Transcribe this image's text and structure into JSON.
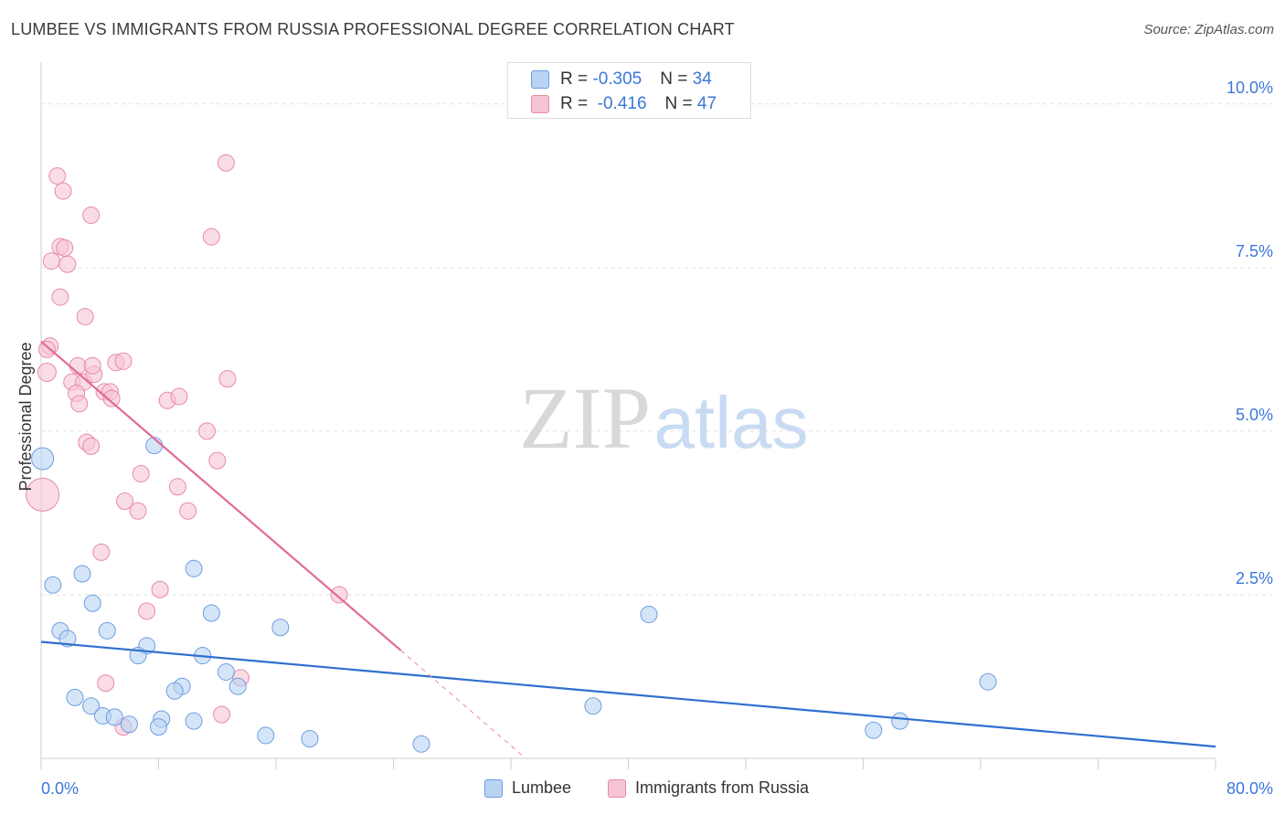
{
  "header": {
    "title": "LUMBEE VS IMMIGRANTS FROM RUSSIA PROFESSIONAL DEGREE CORRELATION CHART",
    "source": "Source: ZipAtlas.com"
  },
  "watermark": {
    "zip": "ZIP",
    "atlas": "atlas"
  },
  "stats_box": {
    "rows": [
      {
        "r_label": "R = ",
        "r_value": "-0.305",
        "n_label": "N = ",
        "n_value": "34"
      },
      {
        "r_label": "R = ",
        "r_value": " -0.416",
        "n_label": "N = ",
        "n_value": "47"
      }
    ]
  },
  "legend": {
    "lumbee": "Lumbee",
    "russia": "Immigrants from Russia"
  },
  "colors": {
    "lumbee_fill": "#b9d3f3",
    "lumbee_stroke": "#6d9de0",
    "lumbee_line": "#2f6fcf",
    "russia_fill": "#f7c4d4",
    "russia_stroke": "#e88aa7",
    "russia_line": "#e26a93",
    "tick_label": "#3b78d8",
    "grid": "#e2e2e2"
  },
  "chart_data": {
    "type": "scatter",
    "title": "LUMBEE VS IMMIGRANTS FROM RUSSIA PROFESSIONAL DEGREE CORRELATION CHART",
    "xlabel": "",
    "ylabel": "Professional Degree",
    "xlim": [
      0,
      80
    ],
    "ylim": [
      0,
      10.5
    ],
    "x_tick_labels": [
      "0.0%",
      "80.0%"
    ],
    "y_ticks": [
      2.5,
      5.0,
      7.5,
      10.0
    ],
    "y_tick_labels": [
      "2.5%",
      "5.0%",
      "7.5%",
      "10.0%"
    ],
    "grid": true,
    "legend_position": "bottom-center",
    "series": [
      {
        "name": "Lumbee",
        "r": -0.305,
        "n": 34,
        "trend": {
          "x": [
            0,
            80
          ],
          "y": [
            1.78,
            0.18
          ]
        },
        "points": [
          [
            0.1,
            4.58,
            12
          ],
          [
            0.8,
            2.65,
            9
          ],
          [
            2.8,
            2.82,
            9
          ],
          [
            3.5,
            2.37,
            9
          ],
          [
            1.3,
            1.95,
            9
          ],
          [
            1.8,
            1.83,
            9
          ],
          [
            4.5,
            1.95,
            9
          ],
          [
            7.7,
            4.78,
            9
          ],
          [
            10.4,
            2.9,
            9
          ],
          [
            11.6,
            2.22,
            9
          ],
          [
            16.3,
            2.0,
            9
          ],
          [
            7.2,
            1.72,
            9
          ],
          [
            6.6,
            1.57,
            9
          ],
          [
            11.0,
            1.57,
            9
          ],
          [
            12.6,
            1.32,
            9
          ],
          [
            9.6,
            1.1,
            9
          ],
          [
            9.1,
            1.03,
            9
          ],
          [
            13.4,
            1.1,
            9
          ],
          [
            2.3,
            0.93,
            9
          ],
          [
            3.4,
            0.8,
            9
          ],
          [
            4.2,
            0.65,
            9
          ],
          [
            5.0,
            0.63,
            9
          ],
          [
            6.0,
            0.52,
            9
          ],
          [
            8.2,
            0.6,
            9
          ],
          [
            10.4,
            0.57,
            9
          ],
          [
            8.0,
            0.48,
            9
          ],
          [
            15.3,
            0.35,
            9
          ],
          [
            18.3,
            0.3,
            9
          ],
          [
            25.9,
            0.22,
            9
          ],
          [
            37.6,
            0.8,
            9
          ],
          [
            41.4,
            2.2,
            9
          ],
          [
            56.7,
            0.43,
            9
          ],
          [
            58.5,
            0.57,
            9
          ],
          [
            64.5,
            1.17,
            9
          ]
        ]
      },
      {
        "name": "Immigrants from Russia",
        "r": -0.416,
        "n": 47,
        "trend": {
          "x": [
            0,
            24.5
          ],
          "y": [
            6.37,
            1.65
          ]
        },
        "trend_dashed": {
          "x": [
            24.5,
            33
          ],
          "y": [
            1.65,
            0
          ]
        },
        "points": [
          [
            0.1,
            4.03,
            18
          ],
          [
            0.4,
            5.9,
            10
          ],
          [
            0.6,
            6.3,
            9
          ],
          [
            0.4,
            6.25,
            9
          ],
          [
            0.7,
            7.6,
            9
          ],
          [
            1.1,
            8.9,
            9
          ],
          [
            1.5,
            8.67,
            9
          ],
          [
            1.3,
            7.82,
            9
          ],
          [
            1.6,
            7.8,
            9
          ],
          [
            1.8,
            7.55,
            9
          ],
          [
            3.4,
            8.3,
            9
          ],
          [
            1.3,
            7.05,
            9
          ],
          [
            3.0,
            6.75,
            9
          ],
          [
            2.5,
            6.0,
            9
          ],
          [
            2.1,
            5.75,
            9
          ],
          [
            2.9,
            5.75,
            9
          ],
          [
            3.6,
            5.87,
            9
          ],
          [
            3.5,
            6.0,
            9
          ],
          [
            5.1,
            6.05,
            9
          ],
          [
            5.6,
            6.07,
            9
          ],
          [
            2.4,
            5.58,
            9
          ],
          [
            2.6,
            5.42,
            9
          ],
          [
            4.3,
            5.6,
            9
          ],
          [
            4.7,
            5.6,
            9
          ],
          [
            4.8,
            5.5,
            9
          ],
          [
            8.6,
            5.47,
            9
          ],
          [
            9.4,
            5.53,
            9
          ],
          [
            12.7,
            5.8,
            9
          ],
          [
            3.1,
            4.83,
            9
          ],
          [
            3.4,
            4.77,
            9
          ],
          [
            11.3,
            5.0,
            9
          ],
          [
            12.0,
            4.55,
            9
          ],
          [
            6.8,
            4.35,
            9
          ],
          [
            9.3,
            4.15,
            9
          ],
          [
            5.7,
            3.93,
            9
          ],
          [
            6.6,
            3.78,
            9
          ],
          [
            10.0,
            3.78,
            9
          ],
          [
            4.1,
            3.15,
            9
          ],
          [
            8.1,
            2.58,
            9
          ],
          [
            7.2,
            2.25,
            9
          ],
          [
            20.3,
            2.5,
            9
          ],
          [
            12.6,
            9.1,
            9
          ],
          [
            11.6,
            7.97,
            9
          ],
          [
            4.4,
            1.15,
            9
          ],
          [
            13.6,
            1.23,
            9
          ],
          [
            12.3,
            0.67,
            9
          ],
          [
            5.6,
            0.48,
            9
          ]
        ]
      }
    ]
  }
}
